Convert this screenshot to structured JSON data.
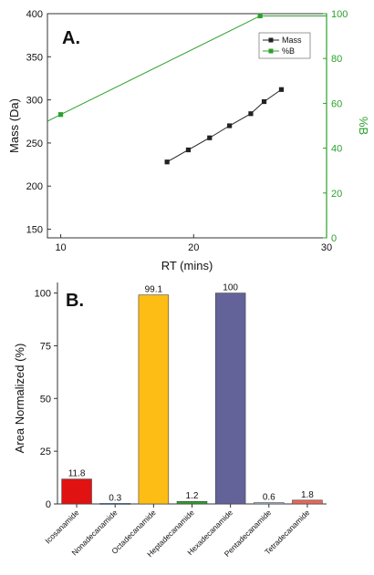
{
  "chart_data": [
    {
      "type": "line",
      "panel_label": "A.",
      "xlabel": "RT (mins)",
      "ylabel": "Mass (Da)",
      "y2label": "%B",
      "xlim": [
        9,
        30
      ],
      "ylim": [
        140,
        400
      ],
      "y2lim": [
        0,
        100
      ],
      "x_ticks": [
        10,
        20,
        30
      ],
      "y_ticks": [
        150,
        200,
        250,
        300,
        350,
        400
      ],
      "y2_ticks": [
        0,
        20,
        40,
        60,
        80,
        100
      ],
      "legend_position": "top-right",
      "series": [
        {
          "name": "Mass",
          "axis": "left",
          "color": "#222222",
          "marker": "square",
          "x": [
            18.0,
            19.6,
            21.2,
            22.7,
            24.3,
            25.3,
            26.6
          ],
          "y": [
            228,
            242,
            256,
            270,
            284,
            298,
            312
          ]
        },
        {
          "name": "%B",
          "axis": "right",
          "color": "#2ca02c",
          "marker": "square",
          "x": [
            9,
            10,
            25,
            30
          ],
          "y": [
            52,
            55,
            99,
            99
          ]
        }
      ]
    },
    {
      "type": "bar",
      "panel_label": "B.",
      "ylabel": "Area Normalized (%)",
      "ylim": [
        0,
        105
      ],
      "y_ticks": [
        0,
        25,
        50,
        75,
        100
      ],
      "categories": [
        "Icosanamide",
        "Nonadecanamide",
        "Octadecanamide",
        "Heptadecanamide",
        "Hexadecanamide",
        "Pentadecanamide",
        "Tetradecanamide"
      ],
      "values": [
        11.8,
        0.3,
        99.1,
        1.2,
        100,
        0.6,
        1.8
      ],
      "value_labels": [
        "11.8",
        "0.3",
        "99.1",
        "1.2",
        "100",
        "0.6",
        "1.8"
      ],
      "colors": [
        "#e01212",
        "#5b9bd5",
        "#fdbd14",
        "#2ca02c",
        "#63639a",
        "#a9b8c8",
        "#e8665a"
      ]
    }
  ]
}
